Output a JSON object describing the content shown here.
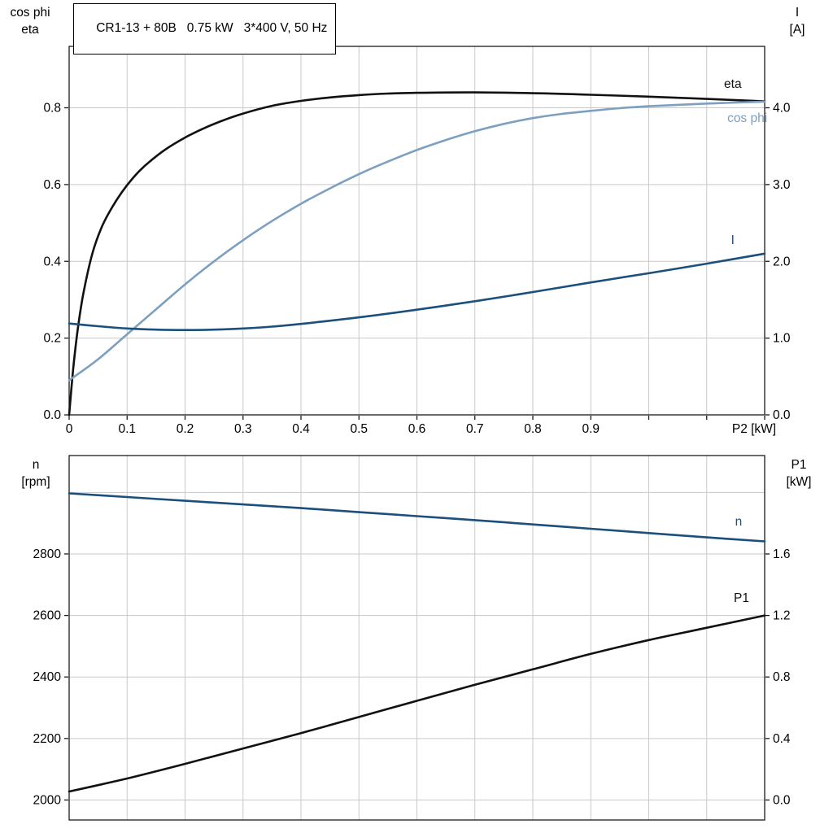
{
  "header": {
    "title": "CR1-13 + 80B   0.75 kW   3*400 V, 50 Hz"
  },
  "axis_corner_titles": {
    "top_left": [
      "cos phi",
      "eta"
    ],
    "top_right": [
      "I",
      "[A]"
    ],
    "bottom_left": [
      "n",
      "[rpm]"
    ],
    "bottom_right": [
      "P1",
      "[kW]"
    ]
  },
  "colors": {
    "background": "#ffffff",
    "frame": "#1a1a1a",
    "grid": "#c9c9c9",
    "text": "#000000",
    "black": "#111111",
    "light_blue": "#7d9fc0",
    "dark_blue": "#1b4f7c"
  },
  "chart_data": [
    {
      "id": "motor-electrical",
      "type": "line",
      "x_axis": {
        "min": 0,
        "max": 1.2,
        "grid_step": 0.1,
        "ticks": [
          {
            "v": 0,
            "label": "0"
          },
          {
            "v": 0.1,
            "label": "0.1"
          },
          {
            "v": 0.2,
            "label": "0.2"
          },
          {
            "v": 0.3,
            "label": "0.3"
          },
          {
            "v": 0.4,
            "label": "0.4"
          },
          {
            "v": 0.5,
            "label": "0.5"
          },
          {
            "v": 0.6,
            "label": "0.6"
          },
          {
            "v": 0.7,
            "label": "0.7"
          },
          {
            "v": 0.8,
            "label": "0.8"
          },
          {
            "v": 0.9,
            "label": "0.9"
          }
        ],
        "end_label": "P2 [kW]"
      },
      "y_left": {
        "title": "cos phi / eta",
        "min": 0,
        "max": 0.96,
        "gridlines": [
          0.2,
          0.4,
          0.6,
          0.8
        ],
        "ticks": [
          {
            "v": 0,
            "label": "0.0"
          },
          {
            "v": 0.2,
            "label": "0.2"
          },
          {
            "v": 0.4,
            "label": "0.4"
          },
          {
            "v": 0.6,
            "label": "0.6"
          },
          {
            "v": 0.8,
            "label": "0.8"
          }
        ]
      },
      "y_right": {
        "title": "I [A]",
        "min": 0,
        "max": 4.8,
        "gridlines": [],
        "ticks": [
          {
            "v": 0,
            "label": "0.0"
          },
          {
            "v": 1,
            "label": "1.0"
          },
          {
            "v": 2,
            "label": "2.0"
          },
          {
            "v": 3,
            "label": "3.0"
          },
          {
            "v": 4,
            "label": "4.0"
          }
        ]
      },
      "series": [
        {
          "name": "eta",
          "axis": "left",
          "color": "black",
          "label": {
            "text": "eta",
            "x": 1.145,
            "y": 0.862
          },
          "points": [
            [
              0,
              0
            ],
            [
              0.004,
              0.07
            ],
            [
              0.008,
              0.135
            ],
            [
              0.015,
              0.225
            ],
            [
              0.025,
              0.32
            ],
            [
              0.04,
              0.42
            ],
            [
              0.055,
              0.485
            ],
            [
              0.07,
              0.53
            ],
            [
              0.09,
              0.578
            ],
            [
              0.11,
              0.617
            ],
            [
              0.13,
              0.648
            ],
            [
              0.16,
              0.685
            ],
            [
              0.19,
              0.714
            ],
            [
              0.22,
              0.738
            ],
            [
              0.26,
              0.764
            ],
            [
              0.3,
              0.785
            ],
            [
              0.35,
              0.805
            ],
            [
              0.4,
              0.818
            ],
            [
              0.45,
              0.827
            ],
            [
              0.5,
              0.833
            ],
            [
              0.55,
              0.837
            ],
            [
              0.6,
              0.839
            ],
            [
              0.7,
              0.84
            ],
            [
              0.8,
              0.838
            ],
            [
              0.9,
              0.834
            ],
            [
              1.0,
              0.829
            ],
            [
              1.1,
              0.823
            ],
            [
              1.2,
              0.817
            ]
          ]
        },
        {
          "name": "cos phi",
          "axis": "left",
          "color": "light_blue",
          "label": {
            "text": "cos phi",
            "x": 1.17,
            "y": 0.773
          },
          "points": [
            [
              0,
              0.09
            ],
            [
              0.05,
              0.145
            ],
            [
              0.1,
              0.21
            ],
            [
              0.15,
              0.275
            ],
            [
              0.2,
              0.34
            ],
            [
              0.25,
              0.4
            ],
            [
              0.3,
              0.455
            ],
            [
              0.35,
              0.505
            ],
            [
              0.4,
              0.55
            ],
            [
              0.45,
              0.59
            ],
            [
              0.5,
              0.627
            ],
            [
              0.55,
              0.66
            ],
            [
              0.6,
              0.69
            ],
            [
              0.65,
              0.716
            ],
            [
              0.7,
              0.739
            ],
            [
              0.75,
              0.758
            ],
            [
              0.8,
              0.773
            ],
            [
              0.85,
              0.784
            ],
            [
              0.9,
              0.792
            ],
            [
              0.95,
              0.799
            ],
            [
              1.0,
              0.804
            ],
            [
              1.1,
              0.811
            ],
            [
              1.2,
              0.816
            ]
          ]
        },
        {
          "name": "I",
          "axis": "right",
          "color": "dark_blue",
          "label": {
            "text": "I",
            "x": 1.145,
            "y": 2.28
          },
          "points": [
            [
              0,
              1.19
            ],
            [
              0.05,
              1.155
            ],
            [
              0.1,
              1.125
            ],
            [
              0.15,
              1.11
            ],
            [
              0.2,
              1.105
            ],
            [
              0.25,
              1.11
            ],
            [
              0.3,
              1.125
            ],
            [
              0.35,
              1.15
            ],
            [
              0.4,
              1.185
            ],
            [
              0.5,
              1.27
            ],
            [
              0.6,
              1.37
            ],
            [
              0.7,
              1.48
            ],
            [
              0.8,
              1.6
            ],
            [
              0.9,
              1.725
            ],
            [
              1.0,
              1.845
            ],
            [
              1.1,
              1.97
            ],
            [
              1.2,
              2.1
            ]
          ]
        }
      ]
    },
    {
      "id": "speed-power",
      "type": "line",
      "x_axis": {
        "min": 0,
        "max": 1.2,
        "grid_step": 0.1,
        "ticks": [],
        "end_label": ""
      },
      "y_left": {
        "title": "n [rpm]",
        "min": 1935,
        "max": 3120,
        "gridlines": [
          2000,
          2200,
          2400,
          2600,
          2800,
          3000
        ],
        "ticks": [
          {
            "v": 2000,
            "label": "2000"
          },
          {
            "v": 2200,
            "label": "2200"
          },
          {
            "v": 2400,
            "label": "2400"
          },
          {
            "v": 2600,
            "label": "2600"
          },
          {
            "v": 2800,
            "label": "2800"
          }
        ]
      },
      "y_right": {
        "title": "P1 [kW]",
        "min": -0.13,
        "max": 2.24,
        "gridlines": [],
        "ticks": [
          {
            "v": 0,
            "label": "0.0"
          },
          {
            "v": 0.4,
            "label": "0.4"
          },
          {
            "v": 0.8,
            "label": "0.8"
          },
          {
            "v": 1.2,
            "label": "1.2"
          },
          {
            "v": 1.6,
            "label": "1.6"
          }
        ]
      },
      "series": [
        {
          "name": "n",
          "axis": "left",
          "color": "dark_blue",
          "label": {
            "text": "n",
            "x": 1.155,
            "y": 2906
          },
          "points": [
            [
              0,
              2997
            ],
            [
              0.1,
              2985
            ],
            [
              0.2,
              2973
            ],
            [
              0.3,
              2961
            ],
            [
              0.4,
              2949
            ],
            [
              0.5,
              2936
            ],
            [
              0.6,
              2923
            ],
            [
              0.7,
              2910
            ],
            [
              0.8,
              2896
            ],
            [
              0.9,
              2882
            ],
            [
              1.0,
              2868
            ],
            [
              1.1,
              2854
            ],
            [
              1.2,
              2841
            ]
          ]
        },
        {
          "name": "P1",
          "axis": "right",
          "color": "black",
          "label": {
            "text": "P1",
            "x": 1.16,
            "y": 1.315
          },
          "points": [
            [
              0,
              0.055
            ],
            [
              0.1,
              0.14
            ],
            [
              0.2,
              0.235
            ],
            [
              0.3,
              0.335
            ],
            [
              0.4,
              0.435
            ],
            [
              0.5,
              0.54
            ],
            [
              0.6,
              0.645
            ],
            [
              0.7,
              0.75
            ],
            [
              0.8,
              0.85
            ],
            [
              0.9,
              0.95
            ],
            [
              1.0,
              1.04
            ],
            [
              1.1,
              1.12
            ],
            [
              1.2,
              1.2
            ]
          ]
        }
      ]
    }
  ]
}
